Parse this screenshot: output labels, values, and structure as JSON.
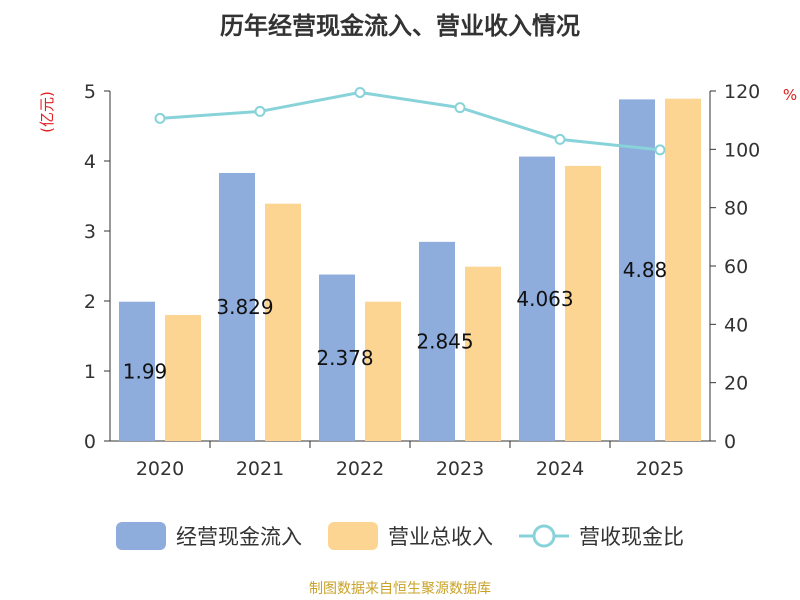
{
  "chart_data": {
    "type": "bar+line",
    "title": "历年经营现金流入、营业收入情况",
    "categories": [
      "2020",
      "2021",
      "2022",
      "2023",
      "2024",
      "2025"
    ],
    "series": [
      {
        "name": "经营现金流入",
        "type": "bar",
        "axis": "left",
        "color": "#8eacdc",
        "values": [
          1.99,
          3.829,
          2.378,
          2.845,
          4.063,
          4.88
        ],
        "labels": [
          "1.99",
          "3.829",
          "2.378",
          "2.845",
          "4.063",
          "4.88"
        ]
      },
      {
        "name": "营业总收入",
        "type": "bar",
        "axis": "left",
        "color": "#fdd592",
        "values": [
          1.8,
          3.39,
          1.99,
          2.49,
          3.93,
          4.89
        ]
      },
      {
        "name": "营收现金比",
        "type": "line",
        "axis": "right",
        "color": "#88d3d9",
        "values": [
          110.6,
          113,
          119.5,
          114.3,
          103.4,
          99.8
        ]
      }
    ],
    "y_left": {
      "label": "(亿元)",
      "range": [
        0,
        5
      ],
      "ticks": [
        "0",
        "1",
        "2",
        "3",
        "4",
        "5"
      ]
    },
    "y_right": {
      "label": "%",
      "range": [
        0,
        120
      ],
      "ticks": [
        "0",
        "20",
        "40",
        "60",
        "80",
        "100",
        "120"
      ]
    },
    "legend": "bottom-center",
    "grid": false
  },
  "source_text": "制图数据来自恒生聚源数据库"
}
